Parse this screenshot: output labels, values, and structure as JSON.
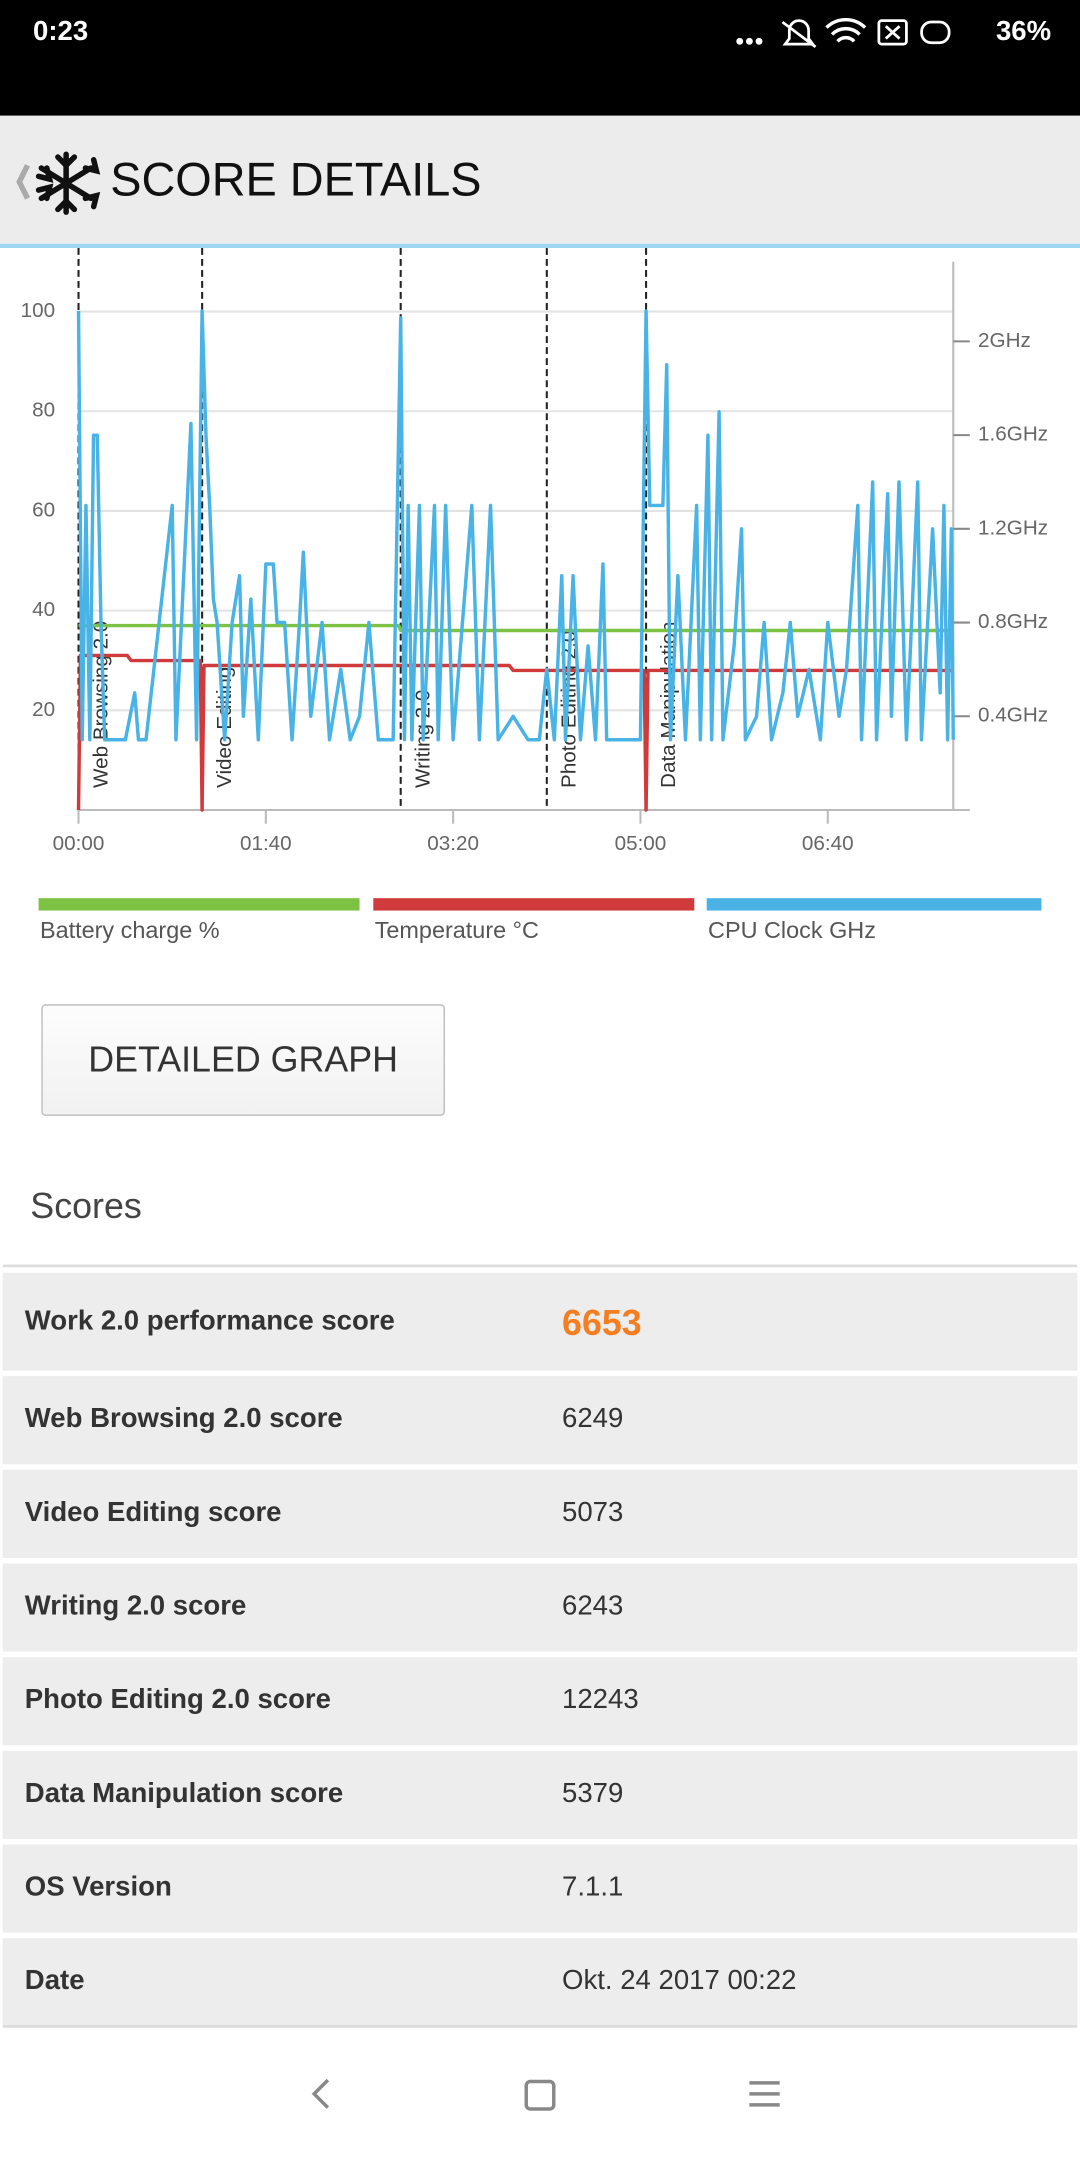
{
  "status_bar": {
    "time": "0:23",
    "battery": "36%"
  },
  "header": {
    "title": "SCORE DETAILS"
  },
  "chart_data": {
    "type": "line",
    "xlim": [
      0,
      467
    ],
    "xticks": [
      {
        "value": 0,
        "label": "00:00"
      },
      {
        "value": 100,
        "label": "01:40"
      },
      {
        "value": 200,
        "label": "03:20"
      },
      {
        "value": 300,
        "label": "05:00"
      },
      {
        "value": 400,
        "label": "06:40"
      }
    ],
    "ylim": [
      0,
      110
    ],
    "yticks": [
      20,
      40,
      60,
      80,
      100
    ],
    "y2lim": [
      0,
      2.34
    ],
    "y2ticks": [
      {
        "value": 0.4,
        "label": "0.4GHz"
      },
      {
        "value": 0.8,
        "label": "0.8GHz"
      },
      {
        "value": 1.2,
        "label": "1.2GHz"
      },
      {
        "value": 1.6,
        "label": "1.6GHz"
      },
      {
        "value": 2,
        "label": "2GHz"
      }
    ],
    "grid": true,
    "annotations": [
      {
        "x": 0,
        "label": "Web Browsing 2.0"
      },
      {
        "x": 66,
        "label": "Video Editing"
      },
      {
        "x": 172,
        "label": "Writing 2.0"
      },
      {
        "x": 250,
        "label": "Photo Editing 2.0"
      },
      {
        "x": 303,
        "label": "Data Manipulation"
      }
    ],
    "series": [
      {
        "name": "Battery charge %",
        "color": "#7dc242",
        "x": [
          0,
          171,
          172,
          467
        ],
        "values": [
          37,
          37,
          36,
          36
        ]
      },
      {
        "name": "Temperature °C",
        "color": "#d03a3a",
        "x": [
          0,
          1,
          26,
          28,
          65,
          66,
          67,
          230,
          232,
          302,
          303,
          304,
          467
        ],
        "values": [
          0,
          31,
          31,
          30,
          30,
          0,
          29,
          29,
          28,
          28,
          0,
          28,
          28
        ]
      },
      {
        "name": "CPU Clock GHz",
        "color": "#4ab3e6",
        "axis": "y2",
        "x": [
          0,
          2,
          4,
          6,
          8,
          10,
          12,
          14,
          20,
          25,
          30,
          32,
          36,
          50,
          52,
          60,
          63,
          66,
          68,
          70,
          72,
          74,
          78,
          82,
          86,
          88,
          92,
          96,
          100,
          104,
          106,
          110,
          114,
          118,
          120,
          124,
          130,
          134,
          140,
          145,
          150,
          155,
          160,
          168,
          172,
          174,
          176,
          178,
          182,
          184,
          190,
          192,
          196,
          200,
          210,
          214,
          220,
          224,
          232,
          240,
          246,
          250,
          254,
          258,
          260,
          264,
          268,
          272,
          276,
          280,
          282,
          290,
          300,
          303,
          305,
          312,
          314,
          316,
          320,
          324,
          330,
          332,
          336,
          338,
          342,
          344,
          350,
          354,
          356,
          362,
          366,
          370,
          376,
          380,
          384,
          390,
          396,
          400,
          406,
          410,
          416,
          418,
          424,
          426,
          432,
          434,
          438,
          442,
          448,
          450,
          456,
          460,
          462,
          464,
          466,
          467
        ],
        "values": [
          2.13,
          0.3,
          1.3,
          0.3,
          1.6,
          1.6,
          0.8,
          0.3,
          0.3,
          0.3,
          0.5,
          0.3,
          0.3,
          1.3,
          0.3,
          1.65,
          0.3,
          2.13,
          1.6,
          1.3,
          0.9,
          0.8,
          0.3,
          0.8,
          1.0,
          0.4,
          0.9,
          0.3,
          1.05,
          1.05,
          0.8,
          0.8,
          0.3,
          0.8,
          1.1,
          0.4,
          0.8,
          0.3,
          0.6,
          0.3,
          0.4,
          0.8,
          0.3,
          0.3,
          2.1,
          0.3,
          1.3,
          0.3,
          1.3,
          0.3,
          1.3,
          0.3,
          1.3,
          0.3,
          1.3,
          0.3,
          1.3,
          0.3,
          0.4,
          0.3,
          0.3,
          0.6,
          0.3,
          1.0,
          0.3,
          1.0,
          0.3,
          0.7,
          0.3,
          1.05,
          0.3,
          0.3,
          0.3,
          2.13,
          1.3,
          1.3,
          1.9,
          0.3,
          1.0,
          0.3,
          1.3,
          0.3,
          1.6,
          0.3,
          1.7,
          0.3,
          0.7,
          1.2,
          0.3,
          0.4,
          0.8,
          0.3,
          0.5,
          0.8,
          0.4,
          0.6,
          0.3,
          0.8,
          0.4,
          0.6,
          1.3,
          0.3,
          1.4,
          0.3,
          1.35,
          0.4,
          1.4,
          0.3,
          1.4,
          0.3,
          1.2,
          0.5,
          1.3,
          0.3,
          1.2,
          0.3
        ]
      }
    ]
  },
  "button": {
    "label": "DETAILED GRAPH"
  },
  "scores": {
    "title": "Scores",
    "rows": [
      [
        "Work 2.0 performance score",
        "6653"
      ],
      [
        "Web Browsing 2.0 score",
        "6249"
      ],
      [
        "Video Editing score",
        "5073"
      ],
      [
        "Writing 2.0 score",
        "6243"
      ],
      [
        "Photo Editing 2.0 score",
        "12243"
      ],
      [
        "Data Manipulation score",
        "5379"
      ],
      [
        "OS Version",
        "7.1.1"
      ],
      [
        "Date",
        "Okt. 24 2017 00:22"
      ]
    ]
  }
}
